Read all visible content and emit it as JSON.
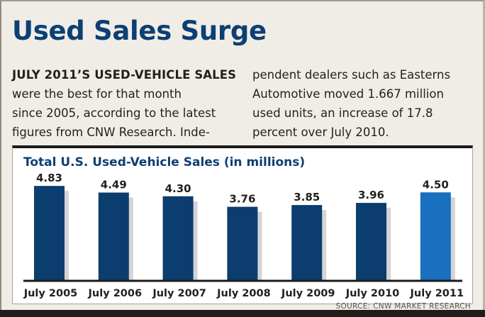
{
  "headline": "Used Sales Surge",
  "body": {
    "left_lines": [
      {
        "text": "JULY 2011’S USED-VEHICLE SALES",
        "lead": true
      },
      {
        "text": "were the best for that month",
        "lead": false
      },
      {
        "text": "since 2005, according to the latest",
        "lead": false
      },
      {
        "text": "figures from CNW Research. Inde-",
        "lead": false
      }
    ],
    "right_lines": [
      "pendent dealers such as Easterns",
      "Automotive moved 1.667 million",
      "used units, an increase of 17.8",
      "percent over July 2010."
    ]
  },
  "source": "SOURCE: CNW MARKET RESEARCH",
  "colors": {
    "bar": "#0b3d6e",
    "highlight_bar": "#1a6fbf",
    "shadow": "#d4d4d6",
    "baseline": "#1c1b1a",
    "title": "#0c3f73"
  },
  "chart_data": {
    "type": "bar",
    "title": "Total U.S. Used-Vehicle Sales (in millions)",
    "xlabel": "",
    "ylabel": "",
    "categories": [
      "July 2005",
      "July 2006",
      "July 2007",
      "July 2008",
      "July 2009",
      "July 2010",
      "July 2011"
    ],
    "values": [
      4.83,
      4.49,
      4.3,
      3.76,
      3.85,
      3.96,
      4.5
    ],
    "value_labels": [
      "4.83",
      "4.49",
      "4.30",
      "3.76",
      "3.85",
      "3.96",
      "4.50"
    ],
    "highlight_index": 6,
    "ylim": [
      0,
      5.5
    ],
    "grid": false,
    "legend": "none",
    "units": "millions"
  }
}
